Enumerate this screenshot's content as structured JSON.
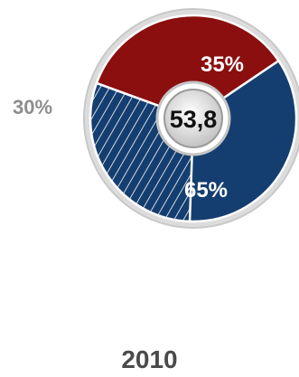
{
  "chart_data": {
    "type": "pie",
    "categories": [
      "red",
      "blue"
    ],
    "values": [
      35,
      65
    ],
    "value_labels": [
      "35%",
      "65%"
    ],
    "colors": [
      "#8b0f0f",
      "#153e70"
    ],
    "hatched_portion": {
      "value": 30,
      "label": "30%",
      "of_category": "blue"
    },
    "center_value": "53,8",
    "year": "2010"
  }
}
